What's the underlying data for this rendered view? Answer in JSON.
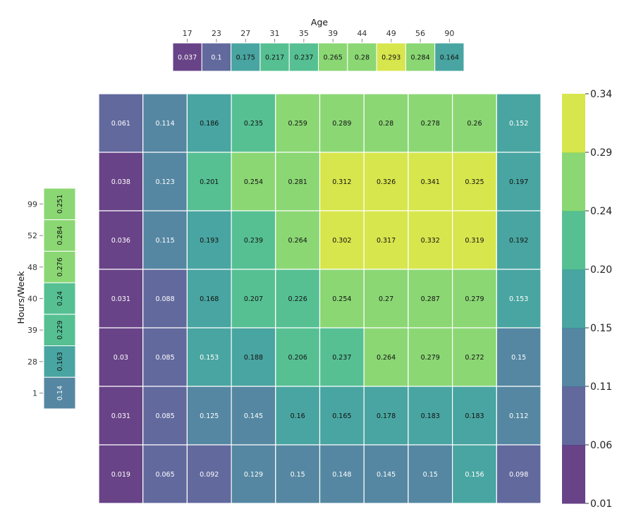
{
  "chart_data": {
    "type": "heatmap",
    "colormap": "viridis",
    "x_title": "Age",
    "y_title": "Hours/Week",
    "main": {
      "rows": [
        [
          0.061,
          0.114,
          0.186,
          0.235,
          0.259,
          0.289,
          0.28,
          0.278,
          0.26,
          0.152
        ],
        [
          0.038,
          0.123,
          0.201,
          0.254,
          0.281,
          0.312,
          0.326,
          0.341,
          0.325,
          0.197
        ],
        [
          0.036,
          0.115,
          0.193,
          0.239,
          0.264,
          0.302,
          0.317,
          0.332,
          0.319,
          0.192
        ],
        [
          0.031,
          0.088,
          0.168,
          0.207,
          0.226,
          0.254,
          0.27,
          0.287,
          0.279,
          0.153
        ],
        [
          0.03,
          0.085,
          0.153,
          0.188,
          0.206,
          0.237,
          0.264,
          0.279,
          0.272,
          0.15
        ],
        [
          0.031,
          0.085,
          0.125,
          0.145,
          0.16,
          0.165,
          0.178,
          0.183,
          0.183,
          0.112
        ],
        [
          0.019,
          0.065,
          0.092,
          0.129,
          0.15,
          0.148,
          0.145,
          0.15,
          0.156,
          0.098
        ]
      ]
    },
    "age_marginal": {
      "ticks": [
        "17",
        "23",
        "27",
        "31",
        "35",
        "39",
        "44",
        "49",
        "56",
        "90"
      ],
      "values": [
        0.037,
        0.1,
        0.175,
        0.217,
        0.237,
        0.265,
        0.28,
        0.293,
        0.284,
        0.164
      ]
    },
    "hours_marginal": {
      "ticks": [
        "99",
        "52",
        "48",
        "40",
        "39",
        "28",
        "1"
      ],
      "values": [
        0.251,
        0.284,
        0.276,
        0.24,
        0.229,
        0.163,
        0.14
      ]
    },
    "colorbar": {
      "range": [
        0.01,
        0.34
      ],
      "ticks": [
        "0.34",
        "0.29",
        "0.24",
        "0.20",
        "0.15",
        "0.11",
        "0.06",
        "0.01"
      ],
      "bins": 7
    }
  }
}
